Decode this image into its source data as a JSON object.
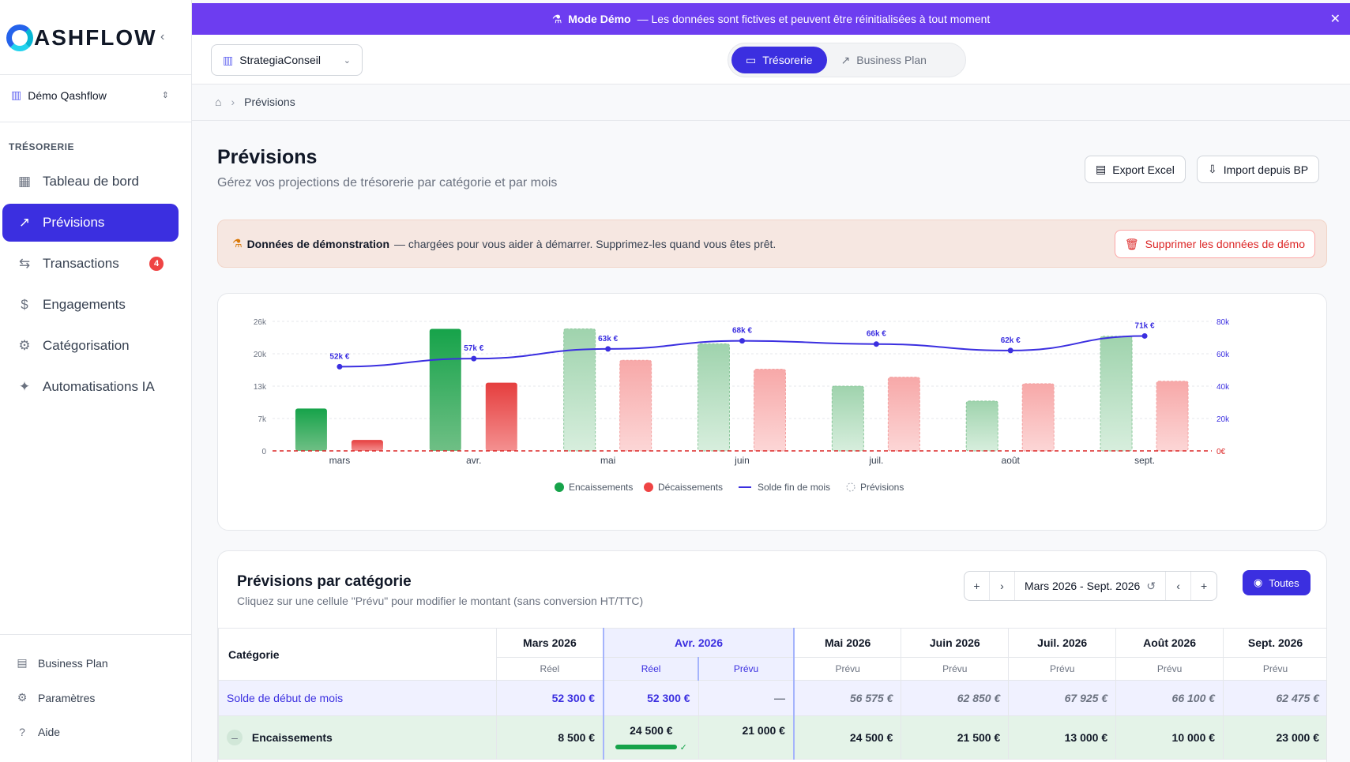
{
  "sidebar": {
    "brand": "ASHFLOW",
    "org": "Démo Qashflow",
    "section": "TRÉSORERIE",
    "items": [
      {
        "label": "Tableau de bord",
        "icon": "dashboard-icon"
      },
      {
        "label": "Prévisions",
        "icon": "trend-icon"
      },
      {
        "label": "Transactions",
        "icon": "exchange-icon",
        "badge": "4"
      },
      {
        "label": "Engagements",
        "icon": "dollar-doc-icon"
      },
      {
        "label": "Catégorisation",
        "icon": "gear-icon"
      },
      {
        "label": "Automatisations IA",
        "icon": "sparkle-icon"
      }
    ],
    "footer": [
      {
        "label": "Business Plan",
        "icon": "document-icon"
      },
      {
        "label": "Paramètres",
        "icon": "gear-icon"
      },
      {
        "label": "Aide",
        "icon": "help-icon"
      }
    ]
  },
  "banner": {
    "mode": "Mode Démo",
    "text": "— Les données sont fictives et peuvent être réinitialisées à tout moment"
  },
  "topbar": {
    "org": "StrategiaConseil",
    "tab_tresorerie": "Trésorerie",
    "tab_bp": "Business Plan"
  },
  "breadcrumb": {
    "current": "Prévisions"
  },
  "page": {
    "title": "Prévisions",
    "subtitle": "Gérez vos projections de trésorerie par catégorie et par mois",
    "export": "Export Excel",
    "import": "Import depuis BP"
  },
  "demo": {
    "bold": "Données de démonstration",
    "text": "— chargées pour vous aider à démarrer. Supprimez-les quand vous êtes prêt.",
    "delete": "Supprimer les données de démo"
  },
  "chart_data": {
    "type": "bar",
    "categories": [
      "mars",
      "avr.",
      "mai",
      "juin",
      "juil.",
      "août",
      "sept."
    ],
    "series": [
      {
        "name": "Encaissements",
        "values": [
          8500,
          24500,
          24500,
          21500,
          13000,
          10000,
          23000
        ],
        "color": "#16a34a"
      },
      {
        "name": "Décaissements",
        "values": [
          2200,
          13700,
          18200,
          16400,
          14800,
          13500,
          14000
        ],
        "color": "#ef4444"
      },
      {
        "name": "Solde fin de mois",
        "type": "line",
        "values": [
          52000,
          57000,
          63000,
          68000,
          66000,
          62000,
          71000
        ],
        "labels": [
          "52k €",
          "57k €",
          "63k €",
          "68k €",
          "66k €",
          "62k €",
          "71k €"
        ],
        "color": "#3b2fe0"
      }
    ],
    "forecast_from_index": 2,
    "y_ticks": [
      "0",
      "7k",
      "13k",
      "20k",
      "26k"
    ],
    "ylim": [
      0,
      26000
    ],
    "y2_ticks": [
      "0€",
      "20k",
      "40k",
      "60k",
      "80k"
    ],
    "y2lim": [
      0,
      80000
    ],
    "legend": [
      "Encaissements",
      "Décaissements",
      "Solde fin de mois",
      "Prévisions"
    ]
  },
  "table": {
    "title": "Prévisions par catégorie",
    "subtitle": "Cliquez sur une cellule \"Prévu\" pour modifier le montant (sans conversion HT/TTC)",
    "range": "Mars 2026 - Sept. 2026",
    "filter": "Toutes",
    "cat_header": "Catégorie",
    "months": [
      "Mars 2026",
      "Avr. 2026",
      "Mai 2026",
      "Juin 2026",
      "Juil. 2026",
      "Août 2026",
      "Sept. 2026"
    ],
    "sub_reel": "Réel",
    "sub_prevu": "Prévu",
    "row_solde": {
      "label": "Solde de début de mois",
      "values": [
        "52 300 €",
        "52 300 €",
        "—",
        "56 575 €",
        "62 850 €",
        "67 925 €",
        "66 100 €",
        "62 475 €"
      ]
    },
    "row_enc": {
      "label": "Encaissements",
      "toggle": "–",
      "values": [
        "8 500 €",
        "24 500 €",
        "21 000 €",
        "24 500 €",
        "21 500 €",
        "13 000 €",
        "10 000 €",
        "23 000 €"
      ]
    }
  }
}
